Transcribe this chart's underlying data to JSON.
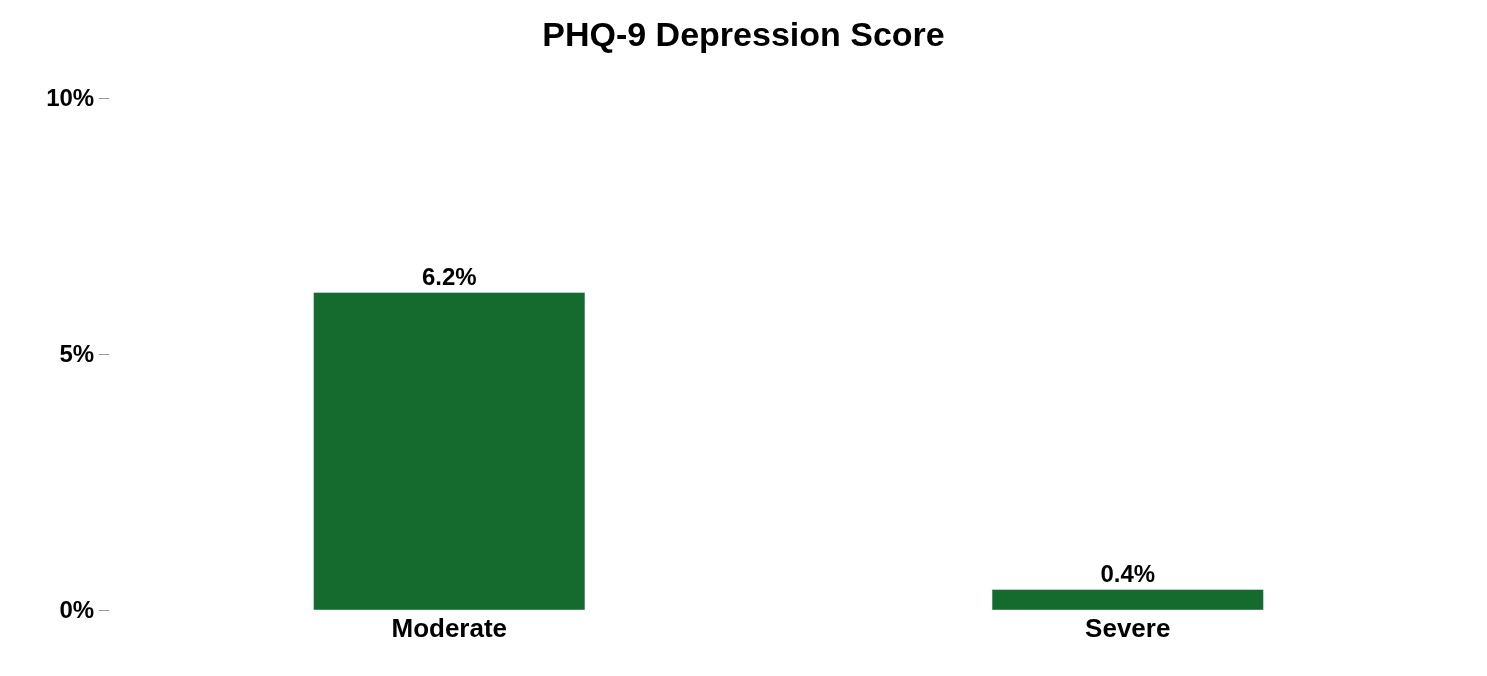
{
  "chart_data": {
    "type": "bar",
    "title": "PHQ-9 Depression Score",
    "categories": [
      "Moderate",
      "Severe"
    ],
    "values": [
      6.2,
      0.4
    ],
    "color": "#156a2e",
    "value_labels": [
      "6.2%",
      "0.4%"
    ],
    "ylim": [
      0,
      10
    ],
    "yticks": [
      {
        "value": 0,
        "label": "0%"
      },
      {
        "value": 5,
        "label": "5%"
      },
      {
        "value": 10,
        "label": "10%"
      }
    ],
    "legend": false
  }
}
